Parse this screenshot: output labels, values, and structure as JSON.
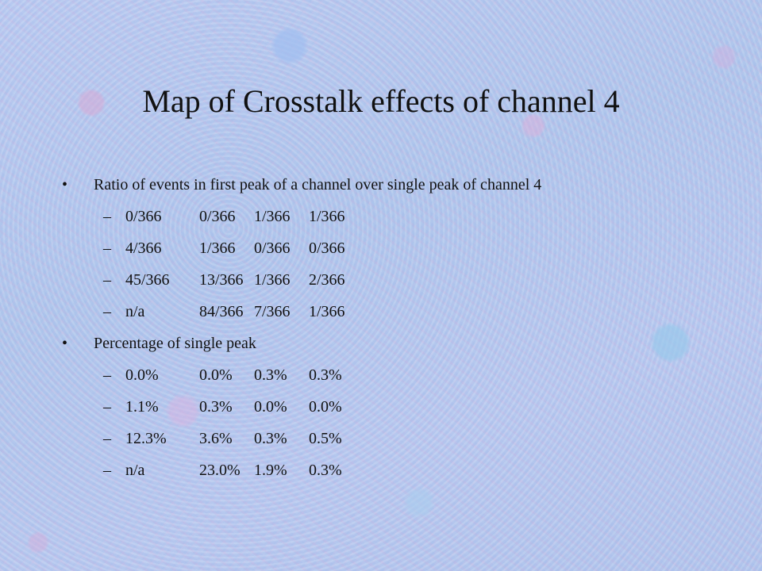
{
  "slide": {
    "title": "Map of Crosstalk effects of channel 4",
    "bullet_glyph": "•",
    "dash_glyph": "–",
    "sections": [
      {
        "heading": "Ratio of events in first peak of a channel over single peak of channel 4",
        "rows": [
          [
            "0/366",
            "0/366",
            "1/366",
            "1/366"
          ],
          [
            "4/366",
            "1/366",
            "0/366",
            "0/366"
          ],
          [
            "45/366",
            "13/366",
            "1/366",
            "2/366"
          ],
          [
            "n/a",
            "84/366",
            "7/366",
            "1/366"
          ]
        ]
      },
      {
        "heading": "Percentage of single peak",
        "rows": [
          [
            "0.0%",
            "0.0%",
            "0.3%",
            "0.3%"
          ],
          [
            "1.1%",
            "0.3%",
            "0.0%",
            "0.0%"
          ],
          [
            "12.3%",
            "3.6%",
            "0.3%",
            "0.5%"
          ],
          [
            "n/a",
            "23.0%",
            "1.9%",
            "0.3%"
          ]
        ]
      }
    ]
  }
}
